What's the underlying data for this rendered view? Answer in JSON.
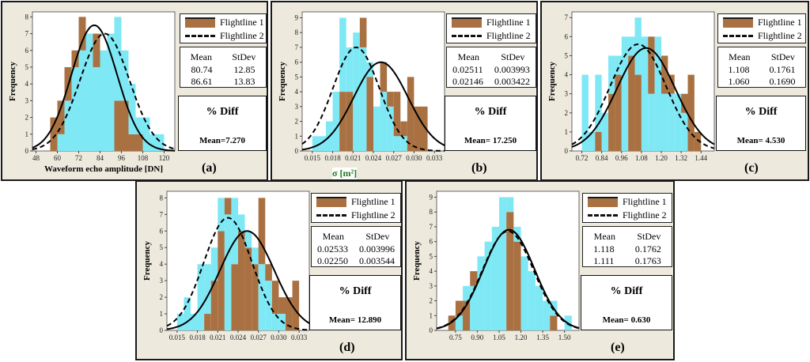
{
  "legend": {
    "series1": "Flightline 1",
    "series2": "Flightline 2"
  },
  "stats_headers": {
    "mean": "Mean",
    "stdev": "StDev"
  },
  "diff_title": "% Diff",
  "y_label": "Frequency",
  "sigma_label": "σ [m²]",
  "colors": {
    "flightline1": "#a97142",
    "flightline2": "#7ee8f5",
    "panel_bg": "#ede9dd"
  },
  "chart_data": [
    {
      "type": "bar",
      "label": "(a)",
      "xlabel": "Waveform echo amplitude [DN]",
      "ylabel": "Frequency",
      "xlim": [
        46,
        126
      ],
      "ylim": [
        0,
        8.3
      ],
      "xticks": [
        "48",
        "60",
        "72",
        "84",
        "96",
        "108",
        "120"
      ],
      "xtick_values": [
        48,
        60,
        72,
        84,
        96,
        108,
        120
      ],
      "yticks": [
        "0",
        "1",
        "2",
        "3",
        "4",
        "5",
        "6",
        "7",
        "8"
      ],
      "bin_edges": [
        56,
        60,
        64,
        68,
        72,
        76,
        80,
        84,
        88,
        92,
        96,
        100,
        104,
        108,
        112,
        116,
        120
      ],
      "series": [
        {
          "name": "Flightline 1",
          "values": [
            2,
            3,
            5,
            6,
            8,
            7,
            7,
            6,
            7,
            3,
            3,
            1,
            1,
            0,
            0,
            0
          ],
          "mean": "80.74",
          "stdev": "12.85",
          "mu": 80.74,
          "sd": 12.85,
          "peak": 7.5
        },
        {
          "name": "Flightline 2",
          "values": [
            0,
            1,
            3,
            5,
            6,
            7,
            5,
            6,
            7,
            8,
            6,
            4,
            2,
            2,
            1,
            1
          ],
          "mean": "86.61",
          "stdev": "13.83",
          "mu": 86.61,
          "sd": 13.83,
          "peak": 7.0
        }
      ],
      "diff_mean": "Mean=7.270"
    },
    {
      "type": "bar",
      "label": "(b)",
      "xlabel": "σ [m²]",
      "ylabel": "Frequency",
      "xlim": [
        0.0135,
        0.0345
      ],
      "ylim": [
        0,
        9.4
      ],
      "xticks": [
        "0.015",
        "0.018",
        "0.021",
        "0.024",
        "0.027",
        "0.030",
        "0.033"
      ],
      "xtick_values": [
        0.015,
        0.018,
        0.021,
        0.024,
        0.027,
        0.03,
        0.033
      ],
      "yticks": [
        "0",
        "1",
        "2",
        "3",
        "4",
        "5",
        "6",
        "7",
        "8",
        "9"
      ],
      "bin_edges": [
        0.015,
        0.016,
        0.017,
        0.018,
        0.019,
        0.02,
        0.021,
        0.022,
        0.023,
        0.024,
        0.025,
        0.026,
        0.027,
        0.028,
        0.029,
        0.03,
        0.031,
        0.032,
        0.033
      ],
      "series": [
        {
          "name": "Flightline 1",
          "values": [
            0,
            0,
            0,
            0,
            4,
            4,
            8,
            9,
            5,
            3,
            6,
            4,
            4,
            2,
            5,
            3,
            3,
            0
          ],
          "mean": "0.02511",
          "stdev": "0.003993",
          "mu": 0.02511,
          "sd": 0.003993,
          "peak": 6.0
        },
        {
          "name": "Flightline 2",
          "values": [
            1,
            1,
            2,
            4,
            9,
            7,
            8,
            7,
            6,
            3,
            4,
            3,
            1,
            1,
            0,
            0,
            0,
            0
          ],
          "mean": "0.02146",
          "stdev": "0.003422",
          "mu": 0.02146,
          "sd": 0.003422,
          "peak": 7.0
        }
      ],
      "diff_mean": "Mean= 17.250"
    },
    {
      "type": "bar",
      "label": "(c)",
      "xlabel": "",
      "ylabel": "Frequency",
      "xlim": [
        0.66,
        1.52
      ],
      "ylim": [
        0,
        7.3
      ],
      "xticks": [
        "0.72",
        "0.84",
        "0.96",
        "1.08",
        "1.20",
        "1.32",
        "1.44"
      ],
      "xtick_values": [
        0.72,
        0.84,
        0.96,
        1.08,
        1.2,
        1.32,
        1.44
      ],
      "yticks": [
        "0",
        "1",
        "2",
        "3",
        "4",
        "5",
        "6",
        "7"
      ],
      "bin_edges": [
        0.72,
        0.76,
        0.8,
        0.84,
        0.88,
        0.92,
        0.96,
        1.0,
        1.04,
        1.08,
        1.12,
        1.16,
        1.2,
        1.24,
        1.28,
        1.32,
        1.36,
        1.4,
        1.44
      ],
      "series": [
        {
          "name": "Flightline 1",
          "values": [
            0,
            1,
            1,
            2,
            3,
            4,
            6,
            5,
            4,
            6,
            6,
            6,
            5,
            4,
            3,
            3,
            4,
            1
          ],
          "mean": "1.108",
          "stdev": "0.1761",
          "mu": 1.108,
          "sd": 0.1761,
          "peak": 5.4
        },
        {
          "name": "Flightline 2",
          "values": [
            4,
            1,
            4,
            2,
            5,
            5,
            6,
            6,
            7,
            6,
            3,
            6,
            3,
            3,
            3,
            2,
            0,
            0
          ],
          "mean": "1.060",
          "stdev": "0.1690",
          "mu": 1.06,
          "sd": 0.169,
          "peak": 5.6
        },
        {
          "name": "",
          "values": []
        }
      ],
      "diff_mean": "Mean= 4.530"
    },
    {
      "type": "bar",
      "label": "(d)",
      "xlabel": "",
      "ylabel": "Frequency",
      "xlim": [
        0.0135,
        0.0345
      ],
      "ylim": [
        0,
        8.4
      ],
      "xticks": [
        "0.015",
        "0.018",
        "0.021",
        "0.024",
        "0.027",
        "0.030",
        "0.033"
      ],
      "xtick_values": [
        0.015,
        0.018,
        0.021,
        0.024,
        0.027,
        0.03,
        0.033
      ],
      "yticks": [
        "0",
        "1",
        "2",
        "3",
        "4",
        "5",
        "6",
        "7",
        "8"
      ],
      "bin_edges": [
        0.015,
        0.016,
        0.017,
        0.018,
        0.019,
        0.02,
        0.021,
        0.022,
        0.023,
        0.024,
        0.025,
        0.026,
        0.027,
        0.028,
        0.029,
        0.03,
        0.031,
        0.032,
        0.033
      ],
      "series": [
        {
          "name": "Flightline 1",
          "values": [
            0,
            0,
            0,
            0,
            1,
            3,
            6,
            8,
            4,
            6,
            5,
            4,
            8,
            4,
            3,
            2,
            2,
            3
          ],
          "mean": "0.02533",
          "stdev": "0.003996",
          "mu": 0.02533,
          "sd": 0.003996,
          "peak": 6.0
        },
        {
          "name": "Flightline 2",
          "values": [
            1,
            2,
            1,
            4,
            4,
            5,
            8,
            7,
            8,
            7,
            6,
            5,
            4,
            3,
            1,
            1,
            0,
            0
          ],
          "mean": "0.02250",
          "stdev": "0.003544",
          "mu": 0.0225,
          "sd": 0.003544,
          "peak": 6.8
        }
      ],
      "diff_mean": "Mean= 12.890"
    },
    {
      "type": "bar",
      "label": "(e)",
      "xlabel": "",
      "ylabel": "Frequency",
      "xlim": [
        0.62,
        1.6
      ],
      "ylim": [
        0,
        9.4
      ],
      "xticks": [
        "0.75",
        "0.90",
        "1.05",
        "1.20",
        "1.35",
        "1.50"
      ],
      "xtick_values": [
        0.75,
        0.9,
        1.05,
        1.2,
        1.35,
        1.5
      ],
      "yticks": [
        "0",
        "1",
        "2",
        "3",
        "4",
        "5",
        "6",
        "7",
        "8",
        "9"
      ],
      "bin_edges": [
        0.7,
        0.75,
        0.8,
        0.85,
        0.9,
        0.95,
        1.0,
        1.05,
        1.1,
        1.15,
        1.2,
        1.25,
        1.3,
        1.35,
        1.4,
        1.45,
        1.5,
        1.55
      ],
      "series": [
        {
          "name": "Flightline 1",
          "values": [
            1,
            2,
            2,
            4,
            5,
            6,
            7,
            9,
            8,
            6,
            5,
            4,
            3,
            2,
            1,
            0,
            1
          ],
          "mean": "1.118",
          "stdev": "0.1762",
          "mu": 1.118,
          "sd": 0.1762,
          "peak": 6.8
        },
        {
          "name": "Flightline 2",
          "values": [
            0,
            1,
            3,
            3,
            5,
            6,
            7,
            9,
            9,
            7,
            5,
            4,
            3,
            2,
            2,
            0,
            1
          ],
          "mean": "1.111",
          "stdev": "0.1763",
          "mu": 1.111,
          "sd": 0.1763,
          "peak": 6.7
        }
      ],
      "diff_mean": "Mean= 0.630"
    }
  ]
}
